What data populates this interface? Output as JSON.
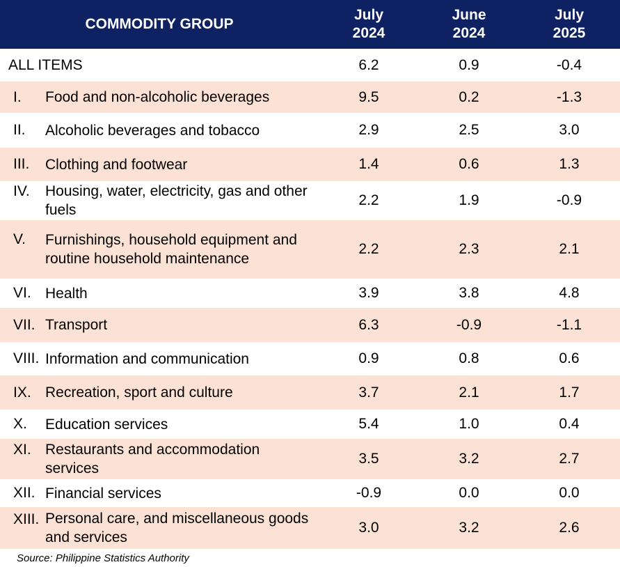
{
  "header": {
    "group_label": "COMMODITY GROUP",
    "col1_line1": "July",
    "col1_line2": "2024",
    "col2_line1": "June",
    "col2_line2": "2024",
    "col3_line1": "July",
    "col3_line2": "2025"
  },
  "rows": [
    {
      "num": "",
      "label": "ALL ITEMS",
      "v1": "6.2",
      "v2": "0.9",
      "v3": "-0.4"
    },
    {
      "num": "I.",
      "label": "Food and non-alcoholic beverages",
      "v1": "9.5",
      "v2": "0.2",
      "v3": "-1.3"
    },
    {
      "num": "II.",
      "label": "Alcoholic beverages and tobacco",
      "v1": "2.9",
      "v2": "2.5",
      "v3": "3.0"
    },
    {
      "num": "III.",
      "label": "Clothing and footwear",
      "v1": "1.4",
      "v2": "0.6",
      "v3": "1.3"
    },
    {
      "num": "IV.",
      "label": "Housing, water, electricity, gas and other fuels",
      "v1": "2.2",
      "v2": "1.9",
      "v3": "-0.9"
    },
    {
      "num": "V.",
      "label": "Furnishings, household equipment and routine household maintenance",
      "v1": "2.2",
      "v2": "2.3",
      "v3": "2.1"
    },
    {
      "num": "VI.",
      "label": "Health",
      "v1": "3.9",
      "v2": "3.8",
      "v3": "4.8"
    },
    {
      "num": "VII.",
      "label": "Transport",
      "v1": "6.3",
      "v2": "-0.9",
      "v3": "-1.1"
    },
    {
      "num": "VIII.",
      "label": "Information and communication",
      "v1": "0.9",
      "v2": "0.8",
      "v3": "0.6"
    },
    {
      "num": "IX.",
      "label": "Recreation, sport and culture",
      "v1": "3.7",
      "v2": "2.1",
      "v3": "1.7"
    },
    {
      "num": "X.",
      "label": "Education services",
      "v1": "5.4",
      "v2": "1.0",
      "v3": "0.4"
    },
    {
      "num": "XI.",
      "label": "Restaurants and accommodation services",
      "v1": "3.5",
      "v2": "3.2",
      "v3": "2.7"
    },
    {
      "num": "XII.",
      "label": "Financial services",
      "v1": "-0.9",
      "v2": "0.0",
      "v3": "0.0"
    },
    {
      "num": "XIII.",
      "label": "Personal care, and miscellaneous goods and services",
      "v1": "3.0",
      "v2": "3.2",
      "v3": "2.6"
    }
  ],
  "source": "Source: Philippine Statistics Authority"
}
